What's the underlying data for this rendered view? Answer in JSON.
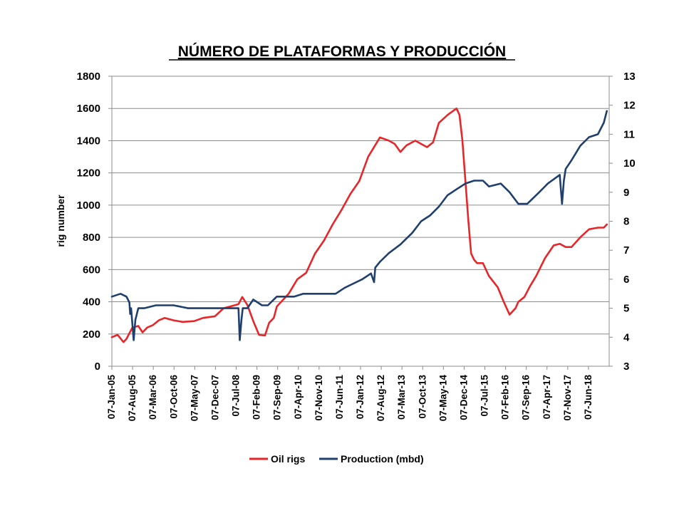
{
  "chart_data": {
    "type": "line",
    "title": "NÚMERO DE PLATAFORMAS Y PRODUCCIÓN",
    "ylabel_left": "rig number",
    "ylabel_right": "",
    "xlabel": "",
    "x_tick_labels": [
      "07-Jan-05",
      "07-Aug-05",
      "07-Mar-06",
      "07-Oct-06",
      "07-May-07",
      "07-Dec-07",
      "07-Jul-08",
      "07-Feb-09",
      "07-Sep-09",
      "07-Apr-10",
      "07-Nov-10",
      "07-Jun-11",
      "07-Jan-12",
      "07-Aug-12",
      "07-Mar-13",
      "07-Oct-13",
      "07-May-14",
      "07-Dec-14",
      "07-Jul-15",
      "07-Feb-16",
      "07-Sep-16",
      "07-Apr-17",
      "07-Nov-17",
      "07-Jun-18"
    ],
    "xlim": [
      "2005-01-07",
      "2019-01-31"
    ],
    "ylim_left": [
      0,
      1800
    ],
    "y_ticks_left": [
      0,
      200,
      400,
      600,
      800,
      1000,
      1200,
      1400,
      1600,
      1800
    ],
    "ylim_right": [
      3,
      13
    ],
    "y_ticks_right": [
      3,
      4,
      5,
      6,
      7,
      8,
      9,
      10,
      11,
      12,
      13
    ],
    "grid": "horizontal",
    "legend_position": "bottom",
    "series": [
      {
        "name": "Oil rigs",
        "color": "#e8262a",
        "axis": "left",
        "x": [
          "2005-01-07",
          "2005-03-07",
          "2005-05-07",
          "2005-06-07",
          "2005-08-07",
          "2005-10-07",
          "2005-11-20",
          "2006-01-07",
          "2006-03-07",
          "2006-05-07",
          "2006-07-07",
          "2006-10-07",
          "2007-01-07",
          "2007-05-07",
          "2007-08-07",
          "2007-12-07",
          "2008-03-07",
          "2008-06-07",
          "2008-08-07",
          "2008-09-15",
          "2008-11-07",
          "2009-01-07",
          "2009-03-07",
          "2009-05-07",
          "2009-06-20",
          "2009-08-07",
          "2009-09-07",
          "2009-11-07",
          "2010-01-07",
          "2010-04-07",
          "2010-07-07",
          "2010-10-07",
          "2011-01-07",
          "2011-04-07",
          "2011-07-07",
          "2011-10-07",
          "2012-01-07",
          "2012-04-07",
          "2012-08-07",
          "2012-11-07",
          "2013-01-07",
          "2013-03-07",
          "2013-05-07",
          "2013-08-07",
          "2013-10-07",
          "2013-12-07",
          "2014-02-07",
          "2014-04-07",
          "2014-07-07",
          "2014-10-07",
          "2014-11-07",
          "2014-12-07",
          "2015-01-07",
          "2015-02-07",
          "2015-03-07",
          "2015-04-07",
          "2015-05-07",
          "2015-07-07",
          "2015-09-07",
          "2015-12-07",
          "2016-02-07",
          "2016-04-07",
          "2016-06-07",
          "2016-07-07",
          "2016-09-07",
          "2016-11-07",
          "2017-01-07",
          "2017-04-07",
          "2017-07-07",
          "2017-09-07",
          "2017-11-07",
          "2018-01-07",
          "2018-04-07",
          "2018-07-07",
          "2018-10-07",
          "2018-12-07",
          "2019-01-07"
        ],
        "values": [
          180,
          195,
          150,
          170,
          240,
          250,
          210,
          240,
          255,
          285,
          300,
          285,
          275,
          280,
          300,
          310,
          360,
          375,
          385,
          430,
          380,
          280,
          195,
          190,
          270,
          300,
          370,
          410,
          450,
          540,
          580,
          700,
          780,
          880,
          970,
          1070,
          1150,
          1300,
          1420,
          1400,
          1380,
          1330,
          1370,
          1400,
          1380,
          1360,
          1390,
          1510,
          1560,
          1600,
          1560,
          1400,
          1150,
          900,
          700,
          660,
          640,
          640,
          560,
          490,
          400,
          320,
          360,
          400,
          430,
          500,
          560,
          670,
          750,
          760,
          740,
          740,
          800,
          850,
          860,
          860,
          880
        ]
      },
      {
        "name": "Production (mbd)",
        "color": "#1f3f6e",
        "axis": "right",
        "x": [
          "2005-01-07",
          "2005-04-07",
          "2005-06-07",
          "2005-07-07",
          "2005-07-15",
          "2005-07-25",
          "2005-08-20",
          "2005-09-07",
          "2005-10-07",
          "2005-12-07",
          "2006-04-07",
          "2006-08-07",
          "2006-10-07",
          "2007-03-07",
          "2007-07-07",
          "2007-11-07",
          "2008-03-07",
          "2008-06-07",
          "2008-08-07",
          "2008-08-20",
          "2008-09-07",
          "2008-09-20",
          "2008-11-07",
          "2009-01-07",
          "2009-04-07",
          "2009-06-07",
          "2009-09-07",
          "2009-12-07",
          "2010-03-07",
          "2010-06-07",
          "2010-09-07",
          "2011-02-07",
          "2011-04-07",
          "2011-05-07",
          "2011-08-07",
          "2011-10-07",
          "2012-02-07",
          "2012-05-07",
          "2012-06-07",
          "2012-06-20",
          "2012-08-07",
          "2012-11-07",
          "2013-03-07",
          "2013-07-07",
          "2013-10-07",
          "2014-01-07",
          "2014-04-07",
          "2014-07-07",
          "2014-10-07",
          "2015-01-07",
          "2015-04-07",
          "2015-07-07",
          "2015-09-07",
          "2016-01-07",
          "2016-04-07",
          "2016-07-07",
          "2016-10-07",
          "2017-02-07",
          "2017-05-07",
          "2017-09-07",
          "2017-10-01",
          "2017-10-20",
          "2017-11-07",
          "2018-01-07",
          "2018-04-07",
          "2018-07-07",
          "2018-10-07",
          "2018-12-07",
          "2019-01-07"
        ],
        "values": [
          5.4,
          5.5,
          5.4,
          5.2,
          4.8,
          5.0,
          3.9,
          4.6,
          5.0,
          5.0,
          5.1,
          5.1,
          5.1,
          5.0,
          5.0,
          5.0,
          5.0,
          5.0,
          5.0,
          3.9,
          4.6,
          5.0,
          5.0,
          5.3,
          5.1,
          5.1,
          5.4,
          5.4,
          5.4,
          5.5,
          5.5,
          5.5,
          5.5,
          5.5,
          5.7,
          5.8,
          6.0,
          6.2,
          5.9,
          6.4,
          6.6,
          6.9,
          7.2,
          7.6,
          8.0,
          8.2,
          8.5,
          8.9,
          9.1,
          9.3,
          9.4,
          9.4,
          9.2,
          9.3,
          9.0,
          8.6,
          8.6,
          9.0,
          9.3,
          9.6,
          8.6,
          9.4,
          9.8,
          10.1,
          10.6,
          10.9,
          11.0,
          11.4,
          11.8
        ]
      }
    ]
  },
  "legend": {
    "items": [
      {
        "label": "Oil rigs",
        "color": "#e8262a"
      },
      {
        "label": "Production (mbd)",
        "color": "#1f3f6e"
      }
    ]
  }
}
